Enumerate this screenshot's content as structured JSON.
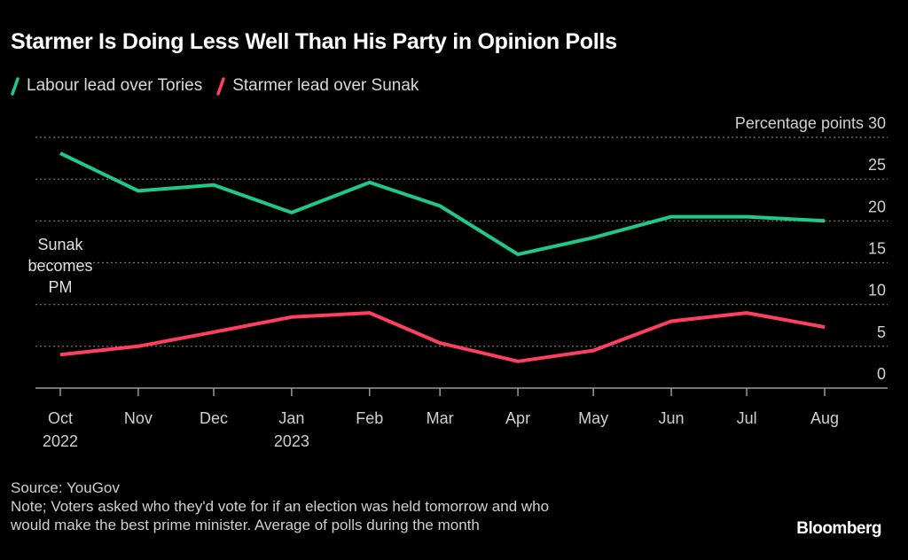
{
  "chart_data": {
    "type": "line",
    "title": "Starmer Is Doing Less Well Than His Party in Opinion Polls",
    "xlabel": "",
    "ylabel": "Percentage points",
    "ylim": [
      0,
      30
    ],
    "yticks": [
      0,
      5,
      10,
      15,
      20,
      25,
      30
    ],
    "grid": true,
    "legend_position": "top-left",
    "categories": [
      "Oct 2022",
      "Nov",
      "Dec",
      "Jan 2023",
      "Feb",
      "Mar",
      "Apr",
      "May",
      "Jun",
      "Jul",
      "Aug"
    ],
    "x_tick_labels": [
      {
        "line1": "Oct",
        "line2": "2022"
      },
      {
        "line1": "Nov",
        "line2": ""
      },
      {
        "line1": "Dec",
        "line2": ""
      },
      {
        "line1": "Jan",
        "line2": "2023"
      },
      {
        "line1": "Feb",
        "line2": ""
      },
      {
        "line1": "Mar",
        "line2": ""
      },
      {
        "line1": "Apr",
        "line2": ""
      },
      {
        "line1": "May",
        "line2": ""
      },
      {
        "line1": "Jun",
        "line2": ""
      },
      {
        "line1": "Jul",
        "line2": ""
      },
      {
        "line1": "Aug",
        "line2": ""
      }
    ],
    "x_month_days": [
      0,
      31,
      61,
      92,
      123,
      151,
      182,
      212,
      243,
      273,
      304
    ],
    "series": [
      {
        "name": "Labour lead over Tories",
        "color": "#1fc98a",
        "values": [
          28.1,
          23.6,
          24.3,
          21.0,
          24.6,
          21.8,
          16.0,
          18.0,
          20.5,
          20.5,
          20.0
        ]
      },
      {
        "name": "Starmer lead over Sunak",
        "color": "#ff3f62",
        "values": [
          4.0,
          5.0,
          6.7,
          8.5,
          9.0,
          5.4,
          3.2,
          4.5,
          8.0,
          9.0,
          7.3
        ]
      }
    ],
    "annotations": [
      {
        "text_lines": [
          "Sunak",
          "becomes",
          "PM"
        ],
        "x": "Oct 2022"
      }
    ],
    "y_unit_label": "Percentage points"
  },
  "footer": {
    "source": "Source: YouGov",
    "note_line1": "Note; Voters asked who they'd vote for if an election was held tomorrow and who",
    "note_line2": "would make the best prime minister. Average of polls during the month",
    "brand": "Bloomberg"
  },
  "colors": {
    "background": "#000000",
    "grid": "#7a7a7a",
    "axis": "#9a9a9a",
    "tick_text": "#d0d0d0"
  }
}
